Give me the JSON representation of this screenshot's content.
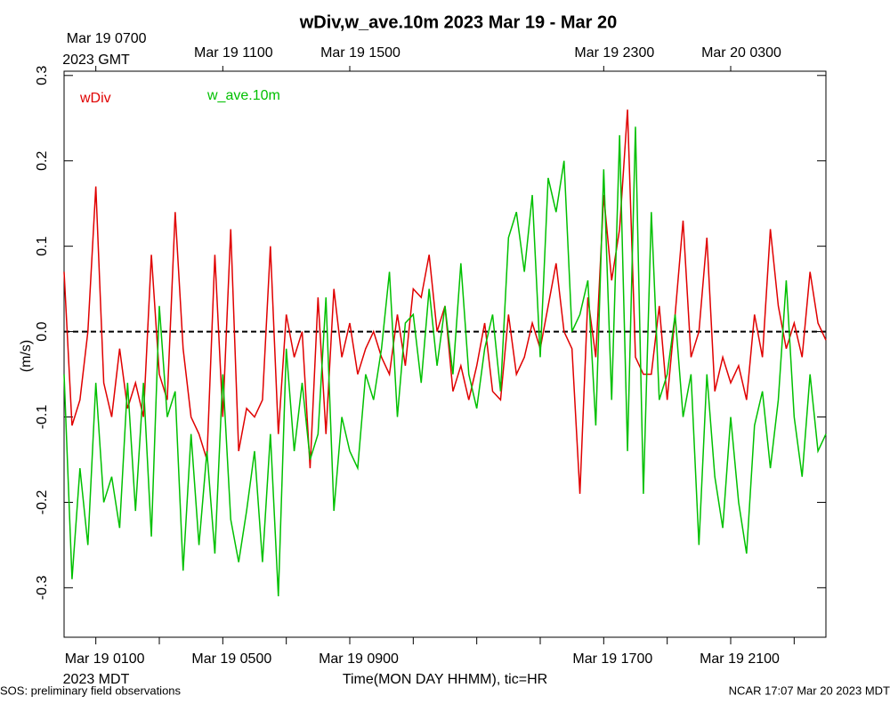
{
  "chart_data": {
    "type": "line",
    "title": "wDiv,w_ave.10m 2023 Mar 19 - Mar 20",
    "y_label": "(m/s)",
    "x_label": "Time(MON DAY HHMM), tic=HR",
    "bottom_axis_zone": "2023 MDT",
    "top_axis_zone": "2023 GMT",
    "footer_left": "SOS: preliminary field observations",
    "footer_right": "NCAR 17:07 Mar 20 2023 MDT",
    "reference_line": 0,
    "xlim": [
      0,
      24
    ],
    "ylim": [
      -0.358,
      0.305
    ],
    "xticks": [
      {
        "value": 1,
        "label": "Mar 19 0100"
      },
      {
        "value": 5,
        "label": "Mar 19 0500"
      },
      {
        "value": 9,
        "label": "Mar 19 0900"
      },
      {
        "value": 17,
        "label": "Mar 19 1700"
      },
      {
        "value": 21,
        "label": "Mar 19 2100"
      }
    ],
    "xticks_minor": [
      3,
      7,
      11,
      13,
      15,
      19,
      23
    ],
    "x2ticks": [
      {
        "value": 1,
        "label": "Mar 19 0700"
      },
      {
        "value": 5,
        "label": "Mar 19 1100"
      },
      {
        "value": 9,
        "label": "Mar 19 1500"
      },
      {
        "value": 17,
        "label": "Mar 19 2300"
      },
      {
        "value": 21,
        "label": "Mar 20 0300"
      }
    ],
    "yticks": [
      -0.3,
      -0.2,
      -0.1,
      {
        "value": 0,
        "label": "0.0"
      },
      0.1,
      0.2,
      0.3
    ],
    "x": [
      0,
      0.25,
      0.5,
      0.75,
      1,
      1.25,
      1.5,
      1.75,
      2,
      2.25,
      2.5,
      2.75,
      3,
      3.25,
      3.5,
      3.75,
      4,
      4.25,
      4.5,
      4.75,
      5,
      5.25,
      5.5,
      5.75,
      6,
      6.25,
      6.5,
      6.75,
      7,
      7.25,
      7.5,
      7.75,
      8,
      8.25,
      8.5,
      8.75,
      9,
      9.25,
      9.5,
      9.75,
      10,
      10.25,
      10.5,
      10.75,
      11,
      11.25,
      11.5,
      11.75,
      12,
      12.25,
      12.5,
      12.75,
      13,
      13.25,
      13.5,
      13.75,
      14,
      14.25,
      14.5,
      14.75,
      15,
      15.25,
      15.5,
      15.75,
      16,
      16.25,
      16.5,
      16.75,
      17,
      17.25,
      17.5,
      17.75,
      18,
      18.25,
      18.5,
      18.75,
      19,
      19.25,
      19.5,
      19.75,
      20,
      20.25,
      20.5,
      20.75,
      21,
      21.25,
      21.5,
      21.75,
      22,
      22.25,
      22.5,
      22.75,
      23,
      23.25,
      23.5,
      23.75,
      24
    ],
    "series": [
      {
        "name": "wDiv",
        "color": "#e00000",
        "values": [
          0.07,
          -0.11,
          -0.08,
          0.0,
          0.17,
          -0.06,
          -0.1,
          -0.02,
          -0.09,
          -0.06,
          -0.1,
          0.09,
          -0.05,
          -0.08,
          0.14,
          -0.02,
          -0.1,
          -0.12,
          -0.15,
          0.09,
          -0.1,
          0.12,
          -0.14,
          -0.09,
          -0.1,
          -0.08,
          0.1,
          -0.12,
          0.02,
          -0.03,
          0.0,
          -0.16,
          0.04,
          -0.12,
          0.05,
          -0.03,
          0.01,
          -0.05,
          -0.02,
          0.0,
          -0.03,
          -0.05,
          0.02,
          -0.04,
          0.05,
          0.04,
          0.09,
          0.0,
          0.03,
          -0.07,
          -0.04,
          -0.08,
          -0.04,
          0.01,
          -0.07,
          -0.08,
          0.02,
          -0.05,
          -0.03,
          0.01,
          -0.02,
          0.03,
          0.08,
          0.0,
          -0.02,
          -0.19,
          0.04,
          -0.03,
          0.16,
          0.06,
          0.12,
          0.26,
          -0.03,
          -0.05,
          -0.05,
          0.03,
          -0.08,
          0.02,
          0.13,
          -0.03,
          0.0,
          0.11,
          -0.07,
          -0.03,
          -0.06,
          -0.04,
          -0.08,
          0.02,
          -0.03,
          0.12,
          0.03,
          -0.02,
          0.01,
          -0.03,
          0.07,
          0.01,
          -0.01
        ]
      },
      {
        "name": "w_ave.10m",
        "color": "#00c000",
        "values": [
          -0.05,
          -0.29,
          -0.16,
          -0.25,
          -0.06,
          -0.2,
          -0.17,
          -0.23,
          -0.06,
          -0.21,
          -0.06,
          -0.24,
          0.03,
          -0.1,
          -0.07,
          -0.28,
          -0.12,
          -0.25,
          -0.14,
          -0.26,
          -0.05,
          -0.22,
          -0.27,
          -0.21,
          -0.14,
          -0.27,
          -0.12,
          -0.31,
          -0.02,
          -0.14,
          -0.06,
          -0.15,
          -0.12,
          0.04,
          -0.21,
          -0.1,
          -0.14,
          -0.16,
          -0.05,
          -0.08,
          -0.02,
          0.07,
          -0.1,
          0.01,
          0.02,
          -0.06,
          0.05,
          -0.04,
          0.03,
          -0.05,
          0.08,
          -0.05,
          -0.09,
          -0.02,
          0.02,
          -0.07,
          0.11,
          0.14,
          0.07,
          0.16,
          -0.03,
          0.18,
          0.14,
          0.2,
          0.0,
          0.02,
          0.06,
          -0.11,
          0.19,
          -0.08,
          0.23,
          -0.14,
          0.24,
          -0.19,
          0.14,
          -0.08,
          -0.05,
          0.02,
          -0.1,
          -0.05,
          -0.25,
          -0.05,
          -0.17,
          -0.23,
          -0.1,
          -0.2,
          -0.26,
          -0.11,
          -0.07,
          -0.16,
          -0.08,
          0.06,
          -0.1,
          -0.17,
          -0.05,
          -0.14,
          -0.12
        ]
      }
    ]
  }
}
